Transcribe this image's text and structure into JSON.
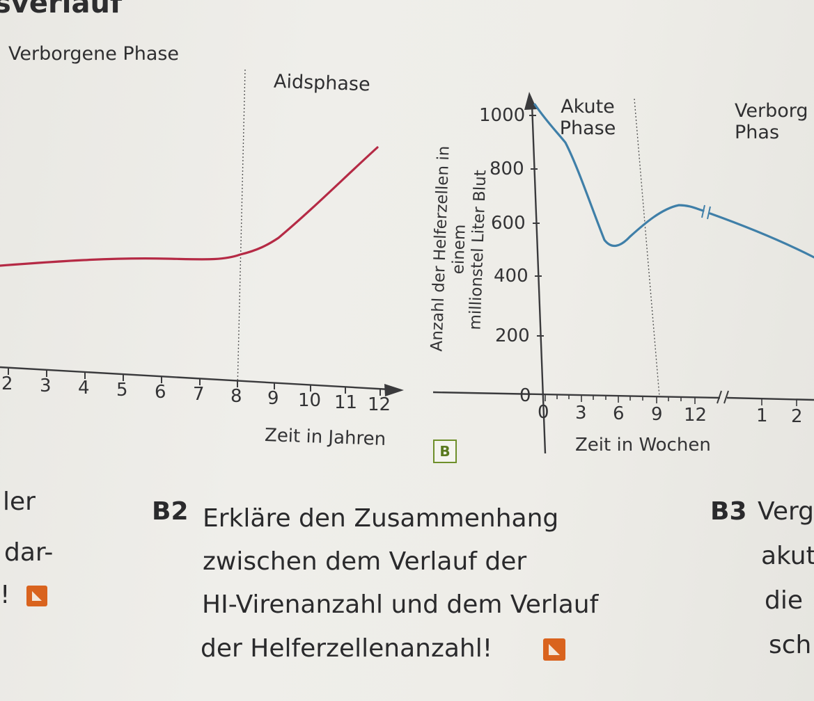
{
  "heading_fragment": "sverlauf",
  "left_chart": {
    "phase_labels": [
      "Verborgene Phase",
      "Aidsphase"
    ],
    "x_ticks": [
      "2",
      "3",
      "4",
      "5",
      "6",
      "7",
      "8",
      "9",
      "10",
      "11",
      "12"
    ],
    "xlabel": "Zeit in Jahren",
    "line_color": "#b52a45"
  },
  "figure_badge": "B",
  "right_chart": {
    "ylabel_line1": "Anzahl der Helferzellen in einem",
    "ylabel_line2": "millionstel Liter Blut",
    "y_ticks": [
      "0",
      "200",
      "400",
      "600",
      "800",
      "1000"
    ],
    "x_ticks_weeks": [
      "0",
      "3",
      "6",
      "9",
      "12"
    ],
    "x_ticks_years": [
      "1",
      "2"
    ],
    "xlabel": "Zeit in Wochen",
    "phase_labels": [
      "Akute Phase",
      "Verborg Phas"
    ],
    "line_color": "#3f7fa8"
  },
  "chart_data": {
    "type": "line",
    "title": "",
    "xlabel": "Zeit in Wochen",
    "ylabel": "Anzahl der Helferzellen in einem millionstel Liter Blut",
    "x": [
      0,
      2,
      4,
      5,
      6,
      8,
      10,
      12,
      16
    ],
    "series": [
      {
        "values": [
          1030,
          900,
          600,
          510,
          520,
          600,
          650,
          640,
          600
        ]
      }
    ],
    "ylim": [
      0,
      1100
    ]
  },
  "text_fragments": {
    "left_col": [
      "ler",
      "dar-",
      "!"
    ],
    "right_col": [
      "Verg",
      "akut",
      "die",
      "sch"
    ],
    "b3_num": "B3"
  },
  "task_b2": {
    "number": "B2",
    "lines": [
      "Erkläre den Zusammenhang",
      "zwischen dem Verlauf der",
      "HI-Virenanzahl und dem Verlauf",
      "der Helferzellenanzahl!"
    ]
  },
  "colors": {
    "orange_icon": "#d9631e",
    "badge_green": "#6e8f2a"
  }
}
